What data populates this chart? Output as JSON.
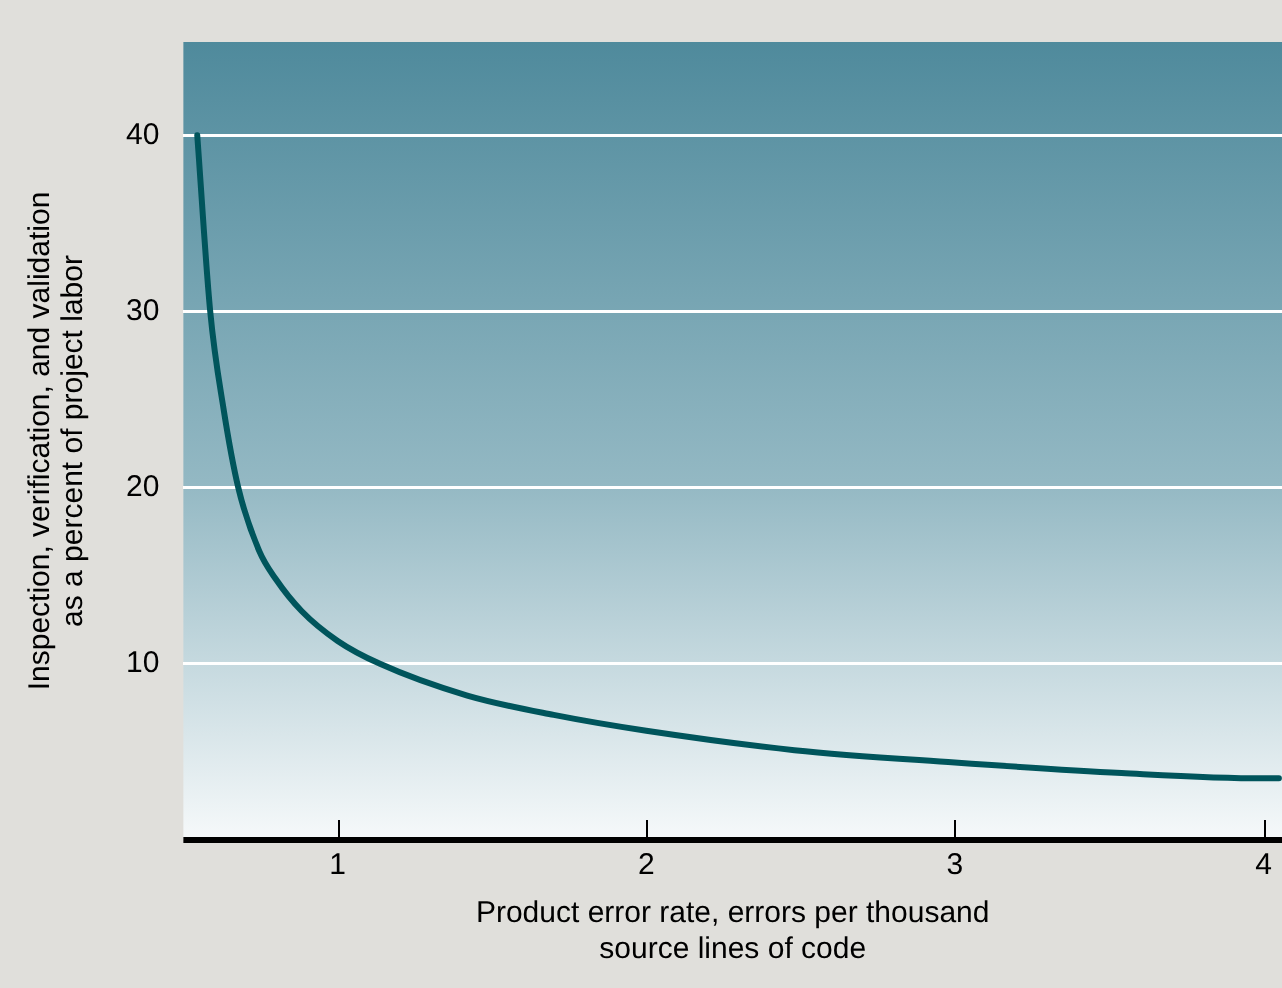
{
  "chart_data": {
    "type": "line",
    "xlabel": "Product error rate, errors per thousand\nsource lines of code",
    "ylabel": "Inspection, verification, and validation\nas a percent of project labor",
    "xlim": [
      0.5,
      4.06
    ],
    "xticks": [
      1,
      2,
      3,
      4
    ],
    "ylim": [
      0,
      45.3
    ],
    "yticks": [
      10,
      20,
      30,
      40
    ],
    "grid": "y",
    "marker": "none",
    "series": [
      {
        "color": "#00555c",
        "x": [
          0.545,
          0.587,
          0.63,
          0.678,
          0.746,
          0.8,
          0.883,
          1.0,
          1.137,
          1.42,
          1.7,
          2.0,
          2.48,
          3.0,
          3.54,
          4.0,
          4.05
        ],
        "values": [
          40,
          30,
          24.5,
          20,
          16.4,
          14.8,
          13.0,
          11.3,
          10.0,
          8.2,
          7.1,
          6.2,
          5.1,
          4.4,
          3.8,
          3.5,
          3.5
        ]
      }
    ]
  }
}
